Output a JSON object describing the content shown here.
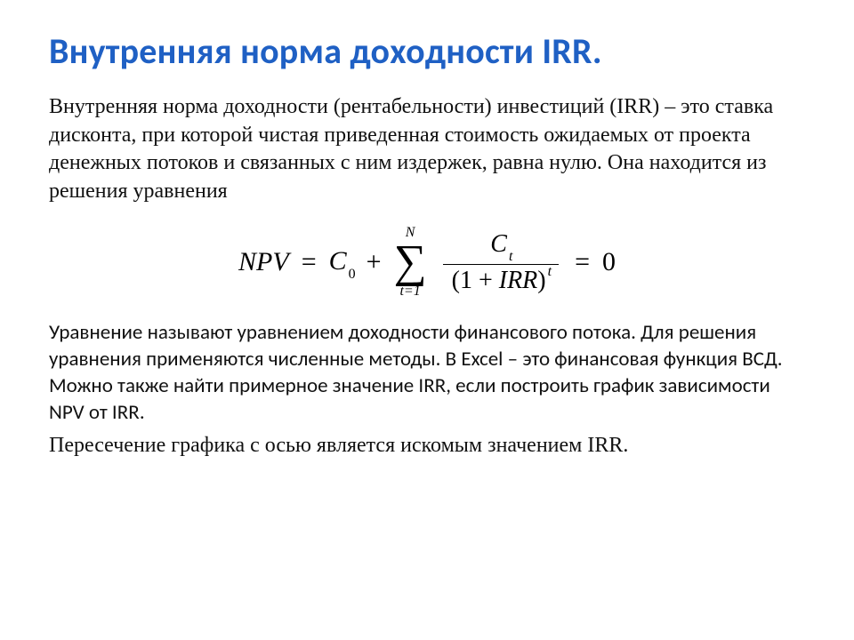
{
  "title": "Внутренняя норма  доходности  IRR.",
  "para1": "Внутренняя норма доходности (рентабельности) инвестиций (IRR) – это ставка дисконта, при которой чистая приведенная стоимость ожидаемых от проекта денежных потоков и связанных с ним издержек, равна нулю. Она находится из решения уравнения",
  "formula": {
    "lhs": "NPV",
    "eq1": "=",
    "c0_base": "C",
    "c0_sub": "0",
    "plus": "+",
    "sum_upper": "N",
    "sum_symbol": "∑",
    "sum_lower": "t=1",
    "frac_num_base": "C",
    "frac_num_sub": "t",
    "frac_den_open": "(1",
    "frac_den_plus": " + ",
    "frac_den_irr": "IRR",
    "frac_den_close": ")",
    "frac_den_sup": "t",
    "eq2": "=",
    "zero": "0"
  },
  "para2": "Уравнение называют уравнением доходности финансового потока. Для решения уравнения применяются численные методы. В Excel – это финансовая функция ВСД. Можно также найти примерное значение IRR, если построить график зависимости NPV от IRR.",
  "para3": "Пересечение графика с осью  является искомым значением IRR.",
  "colors": {
    "title": "#1f60c4",
    "text": "#000000",
    "background": "#ffffff"
  }
}
